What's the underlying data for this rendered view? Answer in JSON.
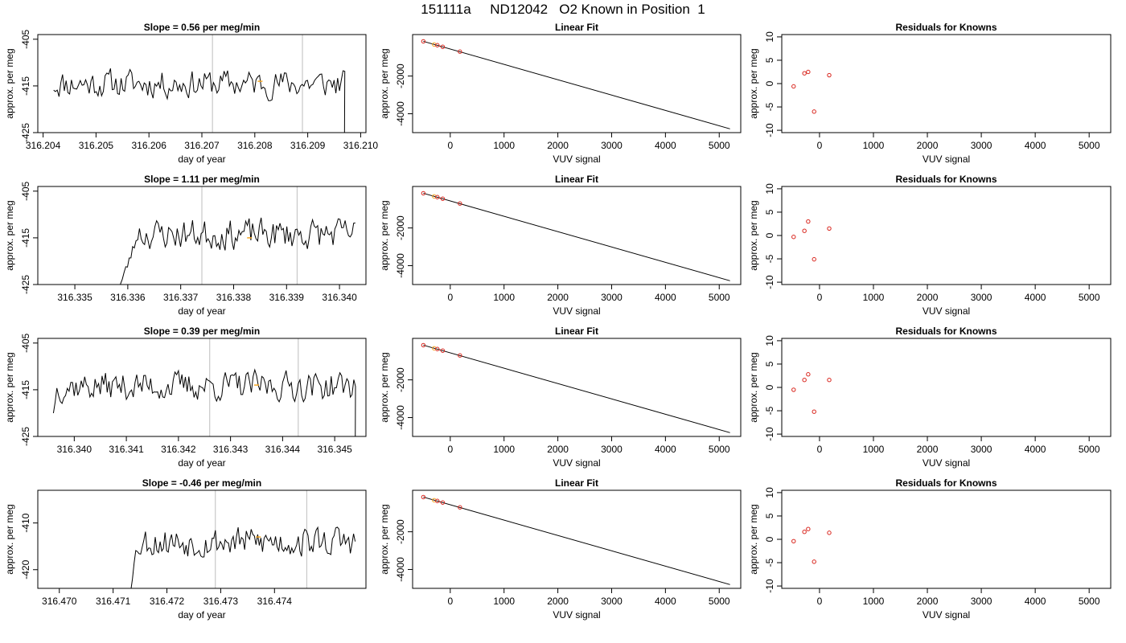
{
  "figure": {
    "title": "151111a     ND12042   O2 Known in Position  1"
  },
  "chart_data": [
    {
      "type": "line",
      "title": "Slope =  0.56  per meg/min",
      "xlabel": "day of year",
      "ylabel": "approx. per meg",
      "xlim": [
        316.2039,
        316.2101
      ],
      "ylim": [
        -425,
        -404
      ],
      "xticks": [
        "316.204",
        "316.205",
        "316.206",
        "316.207",
        "316.208",
        "316.209",
        "316.210"
      ],
      "xtick_values": [
        316.204,
        316.205,
        316.206,
        316.207,
        316.208,
        316.209,
        316.21
      ],
      "yticks": [
        "-405",
        "-415",
        "-425"
      ],
      "ytick_values": [
        -405,
        -415,
        -425
      ],
      "vlines": [
        316.2072,
        316.2089
      ],
      "marker": {
        "x": 316.2081,
        "y": -414,
        "color": "#f5a623"
      },
      "trace": {
        "x_start": 316.2042,
        "x_end": 316.2097,
        "points": 165,
        "baseline": -414.5,
        "amplitude": 2.6,
        "seed": 11,
        "tail_drop_to": -427,
        "tail_from": 316.20965
      }
    },
    {
      "type": "scatter",
      "title": "Linear Fit",
      "xlabel": "VUV signal",
      "ylabel": "approx. per meg",
      "xlim": [
        -700,
        5400
      ],
      "ylim": [
        -5000,
        200
      ],
      "xticks": [
        "0",
        "1000",
        "2000",
        "3000",
        "4000",
        "5000"
      ],
      "xtick_values": [
        0,
        1000,
        2000,
        3000,
        4000,
        5000
      ],
      "yticks": [
        "-2000",
        "-4000"
      ],
      "ytick_values": [
        -2000,
        -4000
      ],
      "fit_line": {
        "x": [
          -500,
          5200
        ],
        "y": [
          -160,
          -4800
        ]
      },
      "points": [
        {
          "x": -500,
          "y": -160,
          "color": "#d9251d"
        },
        {
          "x": -300,
          "y": -325,
          "color": "#f5a623"
        },
        {
          "x": -240,
          "y": -365,
          "color": "#d9251d"
        },
        {
          "x": -140,
          "y": -450,
          "color": "#d9251d"
        },
        {
          "x": 180,
          "y": -705,
          "color": "#d9251d"
        }
      ]
    },
    {
      "type": "scatter",
      "title": "Residuals for Knowns",
      "xlabel": "VUV signal",
      "ylabel": "approx. per meg",
      "xlim": [
        -700,
        5400
      ],
      "ylim": [
        -10.5,
        10.5
      ],
      "xticks": [
        "0",
        "1000",
        "2000",
        "3000",
        "4000",
        "5000"
      ],
      "xtick_values": [
        0,
        1000,
        2000,
        3000,
        4000,
        5000
      ],
      "yticks": [
        "10",
        "5",
        "0",
        "-5",
        "-10"
      ],
      "ytick_values": [
        10,
        5,
        0,
        -5,
        -10
      ],
      "points": [
        {
          "x": -480,
          "y": -0.6
        },
        {
          "x": -280,
          "y": 2.2
        },
        {
          "x": -210,
          "y": 2.5
        },
        {
          "x": -100,
          "y": -6.0
        },
        {
          "x": 180,
          "y": 1.8
        }
      ]
    },
    {
      "type": "line",
      "title": "Slope =  1.11  per meg/min",
      "xlabel": "day of year",
      "ylabel": "approx. per meg",
      "xlim": [
        316.3343,
        316.3405
      ],
      "ylim": [
        -425,
        -404
      ],
      "xticks": [
        "316.335",
        "316.336",
        "316.337",
        "316.338",
        "316.339",
        "316.340"
      ],
      "xtick_values": [
        316.335,
        316.336,
        316.337,
        316.338,
        316.339,
        316.34
      ],
      "yticks": [
        "-405",
        "-415",
        "-425"
      ],
      "ytick_values": [
        -405,
        -415,
        -425
      ],
      "vlines": [
        316.3374,
        316.3392
      ],
      "marker": {
        "x": 316.3383,
        "y": -415,
        "color": "#f5a623"
      },
      "trace": {
        "x_start": 316.3358,
        "x_end": 316.3403,
        "points": 140,
        "baseline": -414.2,
        "amplitude": 2.8,
        "seed": 23,
        "head_from": -427,
        "head_until": 316.3362
      }
    },
    {
      "type": "scatter",
      "title": "Linear Fit",
      "xlabel": "VUV signal",
      "ylabel": "approx. per meg",
      "xlim": [
        -700,
        5400
      ],
      "ylim": [
        -5000,
        200
      ],
      "xticks": [
        "0",
        "1000",
        "2000",
        "3000",
        "4000",
        "5000"
      ],
      "xtick_values": [
        0,
        1000,
        2000,
        3000,
        4000,
        5000
      ],
      "yticks": [
        "-2000",
        "-4000"
      ],
      "ytick_values": [
        -2000,
        -4000
      ],
      "fit_line": {
        "x": [
          -500,
          5200
        ],
        "y": [
          -160,
          -4800
        ]
      },
      "points": [
        {
          "x": -500,
          "y": -160,
          "color": "#d9251d"
        },
        {
          "x": -300,
          "y": -325,
          "color": "#f5a623"
        },
        {
          "x": -240,
          "y": -365,
          "color": "#d9251d"
        },
        {
          "x": -140,
          "y": -450,
          "color": "#d9251d"
        },
        {
          "x": 180,
          "y": -705,
          "color": "#d9251d"
        }
      ]
    },
    {
      "type": "scatter",
      "title": "Residuals for Knowns",
      "xlabel": "VUV signal",
      "ylabel": "approx. per meg",
      "xlim": [
        -700,
        5400
      ],
      "ylim": [
        -10.5,
        10.5
      ],
      "xticks": [
        "0",
        "1000",
        "2000",
        "3000",
        "4000",
        "5000"
      ],
      "xtick_values": [
        0,
        1000,
        2000,
        3000,
        4000,
        5000
      ],
      "yticks": [
        "10",
        "5",
        "0",
        "-5",
        "-10"
      ],
      "ytick_values": [
        10,
        5,
        0,
        -5,
        -10
      ],
      "points": [
        {
          "x": -480,
          "y": -0.3
        },
        {
          "x": -280,
          "y": 1.0
        },
        {
          "x": -210,
          "y": 3.0
        },
        {
          "x": -100,
          "y": -5.1
        },
        {
          "x": 180,
          "y": 1.5
        }
      ]
    },
    {
      "type": "line",
      "title": "Slope =  0.39  per meg/min",
      "xlabel": "day of year",
      "ylabel": "approx. per meg",
      "xlim": [
        316.3393,
        316.3456
      ],
      "ylim": [
        -425,
        -404
      ],
      "xticks": [
        "316.340",
        "316.341",
        "316.342",
        "316.343",
        "316.344",
        "316.345"
      ],
      "xtick_values": [
        316.34,
        316.341,
        316.342,
        316.343,
        316.344,
        316.345
      ],
      "yticks": [
        "-405",
        "-415",
        "-425"
      ],
      "ytick_values": [
        -405,
        -415,
        -425
      ],
      "vlines": [
        316.3426,
        316.3443
      ],
      "marker": {
        "x": 316.3435,
        "y": -414,
        "color": "#f5a623"
      },
      "trace": {
        "x_start": 316.3396,
        "x_end": 316.3454,
        "points": 175,
        "baseline": -414.2,
        "amplitude": 2.7,
        "seed": 37,
        "start_at": -420,
        "tail_drop_to": -427,
        "tail_from": 316.34535
      }
    },
    {
      "type": "scatter",
      "title": "Linear Fit",
      "xlabel": "VUV signal",
      "ylabel": "approx. per meg",
      "xlim": [
        -700,
        5400
      ],
      "ylim": [
        -5000,
        200
      ],
      "xticks": [
        "0",
        "1000",
        "2000",
        "3000",
        "4000",
        "5000"
      ],
      "xtick_values": [
        0,
        1000,
        2000,
        3000,
        4000,
        5000
      ],
      "yticks": [
        "-2000",
        "-4000"
      ],
      "ytick_values": [
        -2000,
        -4000
      ],
      "fit_line": {
        "x": [
          -500,
          5200
        ],
        "y": [
          -160,
          -4800
        ]
      },
      "points": [
        {
          "x": -500,
          "y": -160,
          "color": "#d9251d"
        },
        {
          "x": -300,
          "y": -325,
          "color": "#f5a623"
        },
        {
          "x": -240,
          "y": -365,
          "color": "#d9251d"
        },
        {
          "x": -140,
          "y": -450,
          "color": "#d9251d"
        },
        {
          "x": 180,
          "y": -705,
          "color": "#d9251d"
        }
      ]
    },
    {
      "type": "scatter",
      "title": "Residuals for Knowns",
      "xlabel": "VUV signal",
      "ylabel": "approx. per meg",
      "xlim": [
        -700,
        5400
      ],
      "ylim": [
        -10.5,
        10.5
      ],
      "xticks": [
        "0",
        "1000",
        "2000",
        "3000",
        "4000",
        "5000"
      ],
      "xtick_values": [
        0,
        1000,
        2000,
        3000,
        4000,
        5000
      ],
      "yticks": [
        "10",
        "5",
        "0",
        "-5",
        "-10"
      ],
      "ytick_values": [
        10,
        5,
        0,
        -5,
        -10
      ],
      "points": [
        {
          "x": -480,
          "y": -0.5
        },
        {
          "x": -280,
          "y": 1.6
        },
        {
          "x": -210,
          "y": 2.8
        },
        {
          "x": -100,
          "y": -5.2
        },
        {
          "x": 180,
          "y": 1.6
        }
      ]
    },
    {
      "type": "line",
      "title": "Slope =  -0.46  per meg/min",
      "xlabel": "day of year",
      "ylabel": "approx. per meg",
      "xlim": [
        316.4696,
        316.4757
      ],
      "ylim": [
        -424,
        -403
      ],
      "xticks": [
        "316.470",
        "316.471",
        "316.472",
        "316.473",
        "316.474"
      ],
      "xtick_values": [
        316.47,
        316.471,
        316.472,
        316.473,
        316.474
      ],
      "yticks": [
        "-410",
        "-420"
      ],
      "ytick_values": [
        -410,
        -420
      ],
      "vlines": [
        316.4729,
        316.4746
      ],
      "marker": {
        "x": 316.4737,
        "y": -413,
        "color": "#f5a623"
      },
      "trace": {
        "x_start": 316.4713,
        "x_end": 316.4755,
        "points": 140,
        "baseline": -414.0,
        "amplitude": 2.8,
        "seed": 53,
        "head_from": -426,
        "head_until": 316.47145
      }
    },
    {
      "type": "scatter",
      "title": "Linear Fit",
      "xlabel": "VUV signal",
      "ylabel": "approx. per meg",
      "xlim": [
        -700,
        5400
      ],
      "ylim": [
        -5000,
        200
      ],
      "xticks": [
        "0",
        "1000",
        "2000",
        "3000",
        "4000",
        "5000"
      ],
      "xtick_values": [
        0,
        1000,
        2000,
        3000,
        4000,
        5000
      ],
      "yticks": [
        "-2000",
        "-4000"
      ],
      "ytick_values": [
        -2000,
        -4000
      ],
      "fit_line": {
        "x": [
          -500,
          5200
        ],
        "y": [
          -160,
          -4800
        ]
      },
      "points": [
        {
          "x": -500,
          "y": -160,
          "color": "#d9251d"
        },
        {
          "x": -300,
          "y": -325,
          "color": "#f5a623"
        },
        {
          "x": -240,
          "y": -365,
          "color": "#d9251d"
        },
        {
          "x": -140,
          "y": -450,
          "color": "#d9251d"
        },
        {
          "x": 180,
          "y": -705,
          "color": "#d9251d"
        }
      ]
    },
    {
      "type": "scatter",
      "title": "Residuals for Knowns",
      "xlabel": "VUV signal",
      "ylabel": "approx. per meg",
      "xlim": [
        -700,
        5400
      ],
      "ylim": [
        -10.5,
        10.5
      ],
      "xticks": [
        "0",
        "1000",
        "2000",
        "3000",
        "4000",
        "5000"
      ],
      "xtick_values": [
        0,
        1000,
        2000,
        3000,
        4000,
        5000
      ],
      "yticks": [
        "10",
        "5",
        "0",
        "-5",
        "-10"
      ],
      "ytick_values": [
        10,
        5,
        0,
        -5,
        -10
      ],
      "points": [
        {
          "x": -480,
          "y": -0.4
        },
        {
          "x": -280,
          "y": 1.6
        },
        {
          "x": -210,
          "y": 2.2
        },
        {
          "x": -100,
          "y": -4.8
        },
        {
          "x": 180,
          "y": 1.4
        }
      ]
    }
  ]
}
